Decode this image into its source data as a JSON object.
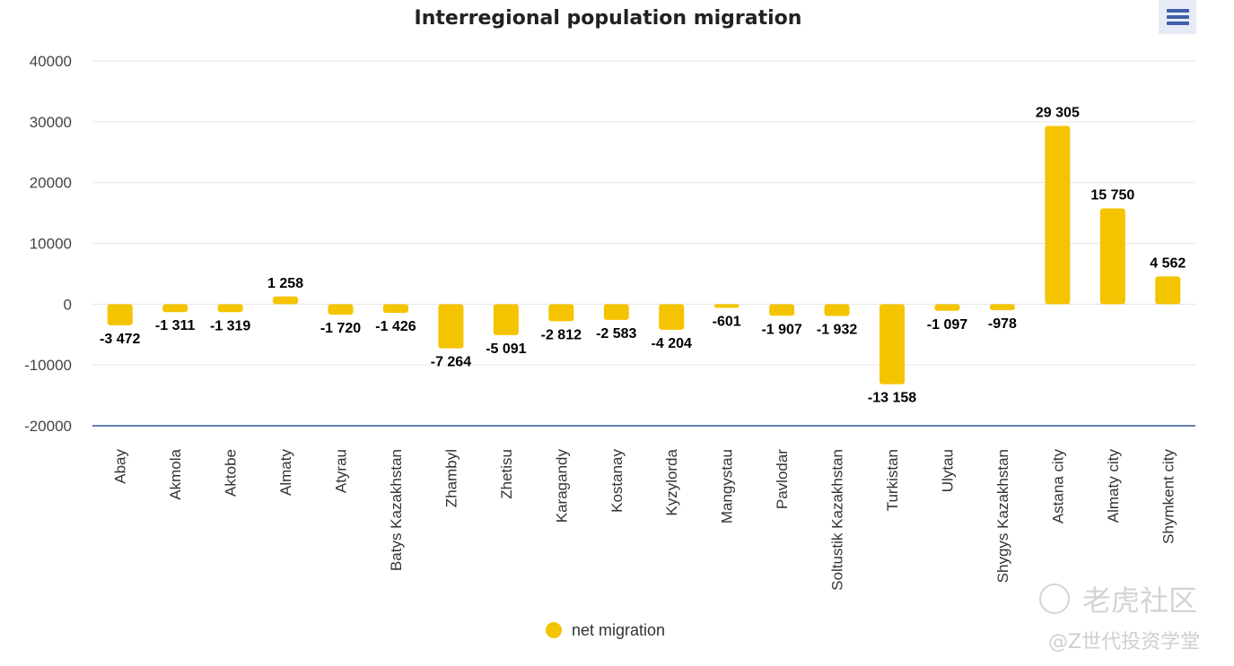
{
  "chart_data": {
    "type": "bar",
    "title": "Interregional population migration",
    "categories": [
      "Abay",
      "Akmola",
      "Aktobe",
      "Almaty",
      "Atyrau",
      "Batys Kazakhstan",
      "Zhambyl",
      "Zhetisu",
      "Karagandy",
      "Kostanay",
      "Kyzylorda",
      "Mangystau",
      "Pavlodar",
      "Soltustik Kazakhstan",
      "Turkistan",
      "Ulytau",
      "Shygys Kazakhstan",
      "Astana city",
      "Almaty city",
      "Shymkent city"
    ],
    "series": [
      {
        "name": "net migration",
        "color": "#f5c400",
        "values": [
          -3472,
          -1311,
          -1319,
          1258,
          -1720,
          -1426,
          -7264,
          -5091,
          -2812,
          -2583,
          -4204,
          -601,
          -1907,
          -1932,
          -13158,
          -1097,
          -978,
          29305,
          15750,
          4562
        ],
        "labels": [
          "-3 472",
          "-1 311",
          "-1 319",
          "1 258",
          "-1 720",
          "-1 426",
          "-7 264",
          "-5 091",
          "-2 812",
          "-2 583",
          "-4 204",
          "-601",
          "-1 907",
          "-1 932",
          "-13 158",
          "-1 097",
          "-978",
          "29 305",
          "15 750",
          "4 562"
        ]
      }
    ],
    "ylim": [
      -20000,
      40000
    ],
    "yticks": [
      "40000",
      "30000",
      "20000",
      "10000",
      "0",
      "-10000",
      "-20000"
    ],
    "xlabel": "",
    "ylabel": "",
    "grid": true,
    "legend": "bottom-center"
  },
  "toolbar": {
    "menu_icon": "hamburger-menu-icon"
  },
  "colors": {
    "bar": "#f5c400",
    "axis": "#34549a",
    "grid": "#e6e6e6",
    "menu_bg": "#e6ebf5",
    "menu_icon": "#3f5fa8"
  },
  "watermark": {
    "brand": "老虎社区",
    "handle": "@Z世代投资学堂"
  }
}
